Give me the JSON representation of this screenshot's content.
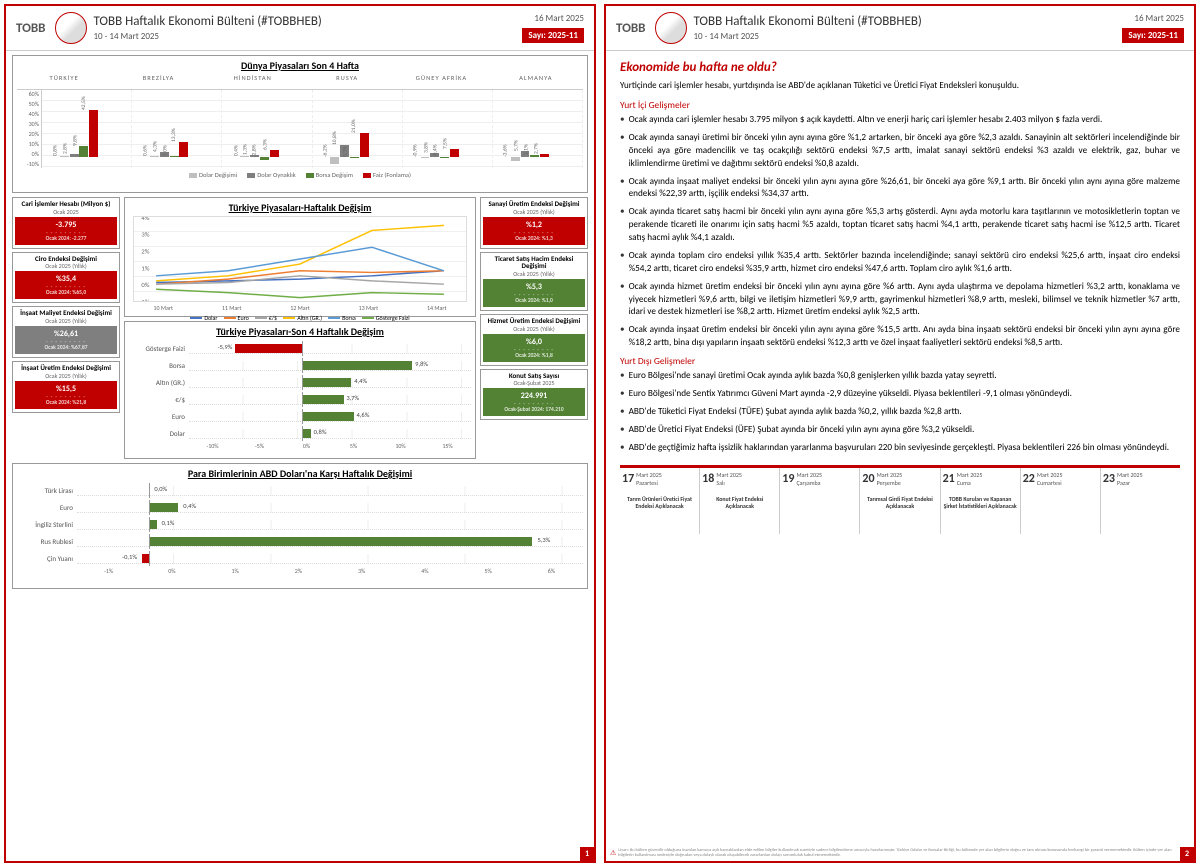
{
  "header": {
    "tobb": "TOBB",
    "title": "TOBB Haftalık Ekonomi Bülteni (#TOBBHEB)",
    "range": "10 - 14 Mart 2025",
    "date": "16 Mart 2025",
    "issue": "Sayı: 2025-11"
  },
  "colors": {
    "red": "#c00000",
    "green": "#548235",
    "grey": "#7f7f7f",
    "lightgrey": "#bfbfbf",
    "blue": "#4472c4",
    "orange": "#ed7d31",
    "yellow": "#ffc000",
    "lightblue": "#5b9bd5",
    "darkgreen": "#70ad47"
  },
  "world": {
    "title": "Dünya Piyasaları Son 4 Hafta",
    "countries": [
      "TÜRKİYE",
      "BREZİLYA",
      "HİNDİSTAN",
      "RUSYA",
      "GÜNEY AFRİKA",
      "ALMANYA"
    ],
    "yticks": [
      "60%",
      "50%",
      "40%",
      "30%",
      "20%",
      "10%",
      "0%",
      "-10%"
    ],
    "ymax": 60,
    "ymin": -10,
    "series": [
      "Dolar Değişimi",
      "Dolar Oynaklık",
      "Borsa Değişim",
      "Faiz (Fonlama)"
    ],
    "series_colors": [
      "#bfbfbf",
      "#7f7f7f",
      "#548235",
      "#c00000"
    ],
    "data": [
      [
        0.8,
        2.8,
        9.8,
        42.5
      ],
      [
        0.6,
        4.3,
        1.0,
        13.3
      ],
      [
        0.4,
        1.3,
        -2.8,
        6.3
      ],
      [
        -6.2,
        10.8,
        0.3,
        21.0
      ],
      [
        -0.9,
        3.8,
        -0.4,
        7.5
      ],
      [
        -3.6,
        5.7,
        2.1,
        2.7
      ]
    ]
  },
  "left_cards": [
    {
      "title": "Cari İşlemler Hesabı (Milyon $)",
      "sub": "Ocak 2025",
      "val": "-3.795",
      "prev": "Ocak 2024: -2.277",
      "color": "red"
    },
    {
      "title": "Ciro Endeksi Değişimi",
      "sub": "Ocak 2025 (Yıllık)",
      "val": "%35,4",
      "prev": "Ocak 2024: %65,0",
      "color": "red"
    },
    {
      "title": "İnşaat Maliyet Endeksi Değişimi",
      "sub": "Ocak 2025 (Yıllık)",
      "val": "%26,61",
      "prev": "Ocak 2024: %67,87",
      "color": "grey"
    },
    {
      "title": "İnşaat Üretim Endeksi Değişimi",
      "sub": "Ocak 2025 (Yıllık)",
      "val": "%15,5",
      "prev": "Ocak 2024: %21,8",
      "color": "red"
    }
  ],
  "right_cards": [
    {
      "title": "Sanayi Üretim Endeksi Değişimi",
      "sub": "Ocak 2025 (Yıllık)",
      "val": "%1,2",
      "prev": "Ocak 2024: %1,3",
      "color": "red"
    },
    {
      "title": "Ticaret Satış Hacim Endeksi Değişimi",
      "sub": "Ocak 2025 (Yıllık)",
      "val": "%5,3",
      "prev": "Ocak 2024: %1,0",
      "color": "green"
    },
    {
      "title": "Hizmet Üretim Endeksi Değişimi",
      "sub": "Ocak 2025 (Yıllık)",
      "val": "%6,0",
      "prev": "Ocak 2024: %1,8",
      "color": "green"
    },
    {
      "title": "Konut Satış Sayısı",
      "sub": "Ocak-Şubat 2025",
      "val": "224.991",
      "prev": "Ocak-Şubat 2024: 174.210",
      "color": "green"
    }
  ],
  "weekly": {
    "title": "Türkiye Piyasaları-Haftalık Değişim",
    "x": [
      "10 Mart",
      "11 Mart",
      "12 Mart",
      "13 Mart",
      "14 Mart"
    ],
    "yticks": [
      "4%",
      "3%",
      "2%",
      "1%",
      "0%",
      "-1%"
    ],
    "series": [
      {
        "name": "Dolar",
        "color": "#4472c4",
        "pts": [
          0.1,
          0.2,
          0.3,
          0.5,
          0.8
        ]
      },
      {
        "name": "Euro",
        "color": "#ed7d31",
        "pts": [
          0.0,
          0.3,
          0.8,
          0.7,
          0.8
        ]
      },
      {
        "name": "€/$",
        "color": "#a5a5a5",
        "pts": [
          0.0,
          0.1,
          0.5,
          0.2,
          0.0
        ]
      },
      {
        "name": "Altın (GR.)",
        "color": "#ffc000",
        "pts": [
          0.2,
          0.5,
          1.2,
          3.2,
          3.5
        ]
      },
      {
        "name": "Borsa",
        "color": "#5b9bd5",
        "pts": [
          0.5,
          0.8,
          1.5,
          2.2,
          0.8
        ]
      },
      {
        "name": "Gösterge Faizi",
        "color": "#70ad47",
        "pts": [
          -0.3,
          -0.5,
          -0.8,
          -0.5,
          -0.6
        ]
      }
    ]
  },
  "four_week": {
    "title": "Türkiye Piyasaları-Son 4 Haftalık Değişim",
    "xticks": [
      "-10%",
      "-5%",
      "0%",
      "5%",
      "10%",
      "15%"
    ],
    "xmin": -10,
    "xmax": 15,
    "rows": [
      {
        "label": "Gösterge Faizi",
        "val": -5.9,
        "color": "#c00000"
      },
      {
        "label": "Borsa",
        "val": 9.8,
        "color": "#548235"
      },
      {
        "label": "Altın (GR.)",
        "val": 4.4,
        "color": "#548235"
      },
      {
        "label": "€/$",
        "val": 3.7,
        "color": "#548235"
      },
      {
        "label": "Euro",
        "val": 4.6,
        "color": "#548235"
      },
      {
        "label": "Dolar",
        "val": 0.8,
        "color": "#548235"
      }
    ]
  },
  "currency": {
    "title": "Para Birimlerinin ABD Doları'na Karşı Haftalık Değişimi",
    "xticks": [
      "-1%",
      "0%",
      "1%",
      "2%",
      "3%",
      "4%",
      "5%",
      "6%"
    ],
    "xmin": -1,
    "xmax": 6,
    "rows": [
      {
        "label": "Türk Lirası",
        "val": 0.0,
        "color": "#548235"
      },
      {
        "label": "Euro",
        "val": 0.4,
        "color": "#548235"
      },
      {
        "label": "İngiliz Sterlini",
        "val": 0.1,
        "color": "#548235"
      },
      {
        "label": "Rus Rublesi",
        "val": 5.3,
        "color": "#548235"
      },
      {
        "label": "Çin Yuanı",
        "val": -0.1,
        "color": "#c00000"
      }
    ]
  },
  "p2": {
    "title": "Ekonomide bu hafta ne oldu?",
    "intro": "Yurtiçinde cari işlemler hesabı, yurtdışında ise ABD'de açıklanan Tüketici ve Üretici Fiyat Endeksleri konuşuldu.",
    "section1": "Yurt İçi Gelişmeler",
    "bullets1": [
      "Ocak ayında cari işlemler hesabı 3.795 milyon $ açık kaydetti. Altın ve enerji hariç cari işlemler hesabı 2.403 milyon $ fazla verdi.",
      "Ocak ayında sanayi üretimi bir önceki yılın aynı ayına göre %1,2 artarken, bir önceki aya göre %2,3 azaldı. Sanayinin alt sektörleri incelendiğinde bir önceki aya göre madencilik ve taş ocakçılığı sektörü endeksi %7,5 arttı, imalat sanayi sektörü endeksi %3 azaldı ve elektrik, gaz, buhar ve iklimlendirme üretimi ve dağıtımı sektörü endeksi %0,8 azaldı.",
      "Ocak ayında inşaat maliyet endeksi bir önceki yılın aynı ayına göre %26,61, bir önceki aya göre %9,1 arttı. Bir önceki yılın aynı ayına göre malzeme endeksi %22,39 arttı, işçilik endeksi %34,37 arttı.",
      "Ocak ayında ticaret satış hacmi bir önceki yılın aynı ayına göre %5,3 artış gösterdi. Aynı ayda motorlu kara taşıtlarının ve motosikletlerin toptan ve perakende ticareti ile onarımı için satış hacmi %5 azaldı, toptan ticaret satış hacmi %4,1 arttı, perakende ticaret satış hacmi ise %12,5 arttı. Ticaret satış hacmi aylık %4,1 azaldı.",
      "Ocak ayında toplam ciro endeksi yıllık %35,4 arttı. Sektörler bazında incelendiğinde; sanayi sektörü ciro endeksi %25,6 arttı, inşaat ciro endeksi %54,2 arttı, ticaret ciro endeksi %35,9 arttı, hizmet ciro endeksi %47,6 arttı. Toplam ciro aylık %1,6 arttı.",
      "Ocak ayında hizmet üretim endeksi bir önceki yılın aynı ayına göre %6 arttı. Aynı ayda ulaştırma ve depolama hizmetleri %3,2 arttı, konaklama ve yiyecek hizmetleri %9,6 arttı, bilgi ve iletişim hizmetleri %9,9 arttı, gayrimenkul hizmetleri %8,9 arttı, mesleki, bilimsel ve teknik hizmetler %7 arttı, idari ve destek hizmetleri ise %8,2 arttı. Hizmet üretim endeksi aylık %2,5 arttı.",
      "Ocak ayında inşaat üretim endeksi bir önceki yılın aynı ayına göre %15,5 arttı. Anı ayda bina inşaatı sektörü endeksi bir önceki yılın aynı ayına göre %18,2 arttı, bina dışı yapıların inşaatı sektörü endeksi %12,3 arttı ve özel inşaat faaliyetleri sektörü endeksi %8,5 arttı."
    ],
    "section2": "Yurt Dışı Gelişmeler",
    "bullets2": [
      "Euro Bölgesi'nde sanayi üretimi Ocak ayında aylık bazda %0,8 genişlerken yıllık bazda yatay seyretti.",
      "Euro Bölgesi'nde Sentix Yatırımcı Güveni Mart ayında -2,9 düzeyine yükseldi. Piyasa beklentileri -9,1 olması yönündeydi.",
      "ABD'de Tüketici Fiyat Endeksi (TÜFE) Şubat ayında aylık bazda %0,2, yıllık bazda %2,8 arttı.",
      "ABD'de Üretici Fiyat Endeksi (ÜFE) Şubat ayında bir önceki yılın aynı ayına göre %3,2 yükseldi.",
      "ABD'de geçtiğimiz hafta işsizlik haklarından yararlanma başvuruları 220 bin seviyesinde gerçekleşti. Piyasa beklentileri 226 bin olması yönündeydi."
    ]
  },
  "calendar": [
    {
      "day": "17",
      "mon": "Mart 2025",
      "dow": "Pazartesi",
      "ev": "Tarım Ürünleri Üretici Fiyat Endeksi Açıklanacak"
    },
    {
      "day": "18",
      "mon": "Mart 2025",
      "dow": "Salı",
      "ev": "Konut Fiyat Endeksi Açıklanacak"
    },
    {
      "day": "19",
      "mon": "Mart 2025",
      "dow": "Çarşamba",
      "ev": ""
    },
    {
      "day": "20",
      "mon": "Mart 2025",
      "dow": "Perşembe",
      "ev": "Tarımsal Girdi Fiyat Endeksi Açıklanacak"
    },
    {
      "day": "21",
      "mon": "Mart 2025",
      "dow": "Cuma",
      "ev": "TOBB Kurulan ve Kapanan Şirket İstatistikleri Açıklanacak"
    },
    {
      "day": "22",
      "mon": "Mart 2025",
      "dow": "Cumartesi",
      "ev": ""
    },
    {
      "day": "23",
      "mon": "Mart 2025",
      "dow": "Pazar",
      "ev": ""
    }
  ],
  "disclaimer": "Uyarı: Bu bülten güvenilir olduğuna inanılan kamuya açık kaynaklardan elde edilen bilgiler kullanılmak suretiyle sadece bilgilendirme amacıyla hazırlanmıştır. Türkiye Odalar ve Borsalar Birliği, bu bültende yer alan bilgilerin doğru ve tam olması konusunda herhangi bir garanti vermemektedir. Bülten içinde yer alan bilgilerin kullanılması nedeniyle doğrudan veya dolaylı olarak oluşabilecek zararlardan dolayı sorumluluk kabul etmemektedir."
}
